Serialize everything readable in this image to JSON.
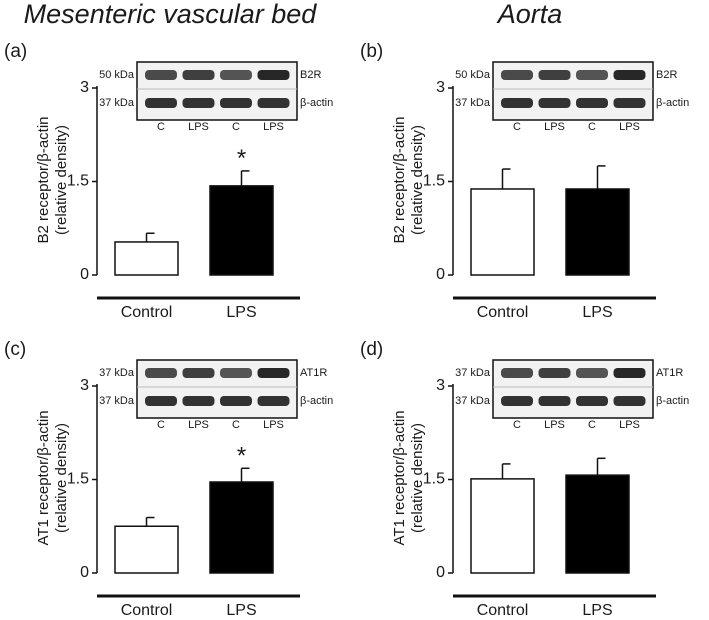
{
  "column_titles": [
    "Mesenteric vascular bed",
    "Aorta"
  ],
  "chart_data": [
    {
      "type": "bar",
      "panel_label": "(a)",
      "ylabel": [
        "B2 receptor/β-actin",
        "(relative density)"
      ],
      "categories": [
        "Control",
        "LPS"
      ],
      "values": [
        0.53,
        1.43
      ],
      "errors": [
        0.14,
        0.24
      ],
      "colors": [
        "#ffffff",
        "#000000"
      ],
      "ylim": [
        0,
        3
      ],
      "yticks": [
        0,
        1.5,
        3
      ],
      "annotations": [
        null,
        "*"
      ],
      "blot": {
        "rows": [
          {
            "size": "50 kDa",
            "label": "B2R"
          },
          {
            "size": "37 kDa",
            "label": "β-actin"
          }
        ],
        "lanes": [
          "C",
          "LPS",
          "C",
          "LPS"
        ]
      }
    },
    {
      "type": "bar",
      "panel_label": "(b)",
      "ylabel": [
        "B2 receptor/β-actin",
        "(relative density)"
      ],
      "categories": [
        "Control",
        "LPS"
      ],
      "values": [
        1.38,
        1.38
      ],
      "errors": [
        0.32,
        0.37
      ],
      "colors": [
        "#ffffff",
        "#000000"
      ],
      "ylim": [
        0,
        3
      ],
      "yticks": [
        0,
        1.5,
        3
      ],
      "annotations": [
        null,
        null
      ],
      "blot": {
        "rows": [
          {
            "size": "50 kDa",
            "label": "B2R"
          },
          {
            "size": "37 kDa",
            "label": "β-actin"
          }
        ],
        "lanes": [
          "C",
          "LPS",
          "C",
          "LPS"
        ]
      }
    },
    {
      "type": "bar",
      "panel_label": "(c)",
      "ylabel": [
        "AT1 receptor/β-actin",
        "(relative density)"
      ],
      "categories": [
        "Control",
        "LPS"
      ],
      "values": [
        0.75,
        1.46
      ],
      "errors": [
        0.14,
        0.22
      ],
      "colors": [
        "#ffffff",
        "#000000"
      ],
      "ylim": [
        0,
        3
      ],
      "yticks": [
        0,
        1.5,
        3
      ],
      "annotations": [
        null,
        "*"
      ],
      "blot": {
        "rows": [
          {
            "size": "37 kDa",
            "label": "AT1R"
          },
          {
            "size": "37 kDa",
            "label": "β-actin"
          }
        ],
        "lanes": [
          "C",
          "LPS",
          "C",
          "LPS"
        ]
      }
    },
    {
      "type": "bar",
      "panel_label": "(d)",
      "ylabel": [
        "AT1 receptor/β-actin",
        "(relative density)"
      ],
      "categories": [
        "Control",
        "LPS"
      ],
      "values": [
        1.51,
        1.57
      ],
      "errors": [
        0.24,
        0.27
      ],
      "colors": [
        "#ffffff",
        "#000000"
      ],
      "ylim": [
        0,
        3
      ],
      "yticks": [
        0,
        1.5,
        3
      ],
      "annotations": [
        null,
        null
      ],
      "blot": {
        "rows": [
          {
            "size": "37 kDa",
            "label": "AT1R"
          },
          {
            "size": "37 kDa",
            "label": "β-actin"
          }
        ],
        "lanes": [
          "C",
          "LPS",
          "C",
          "LPS"
        ]
      }
    }
  ]
}
